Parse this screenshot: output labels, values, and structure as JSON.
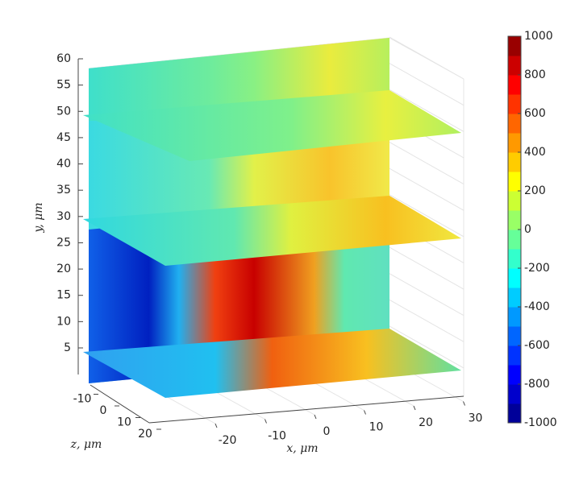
{
  "chart_data": {
    "type": "slice3d",
    "xlabel": "x, μm",
    "ylabel": "y, μm",
    "zlabel": "z, μm",
    "xticks": [
      -20,
      -10,
      0,
      10,
      20,
      30
    ],
    "yticks": [
      5,
      10,
      15,
      20,
      25,
      30,
      35,
      40,
      45,
      50,
      55,
      60
    ],
    "zticks": [
      -10,
      0,
      10,
      20
    ],
    "grid": true,
    "colorbar": {
      "clim": [
        -1000,
        1000
      ],
      "ticks": [
        -1000,
        -800,
        -600,
        -400,
        -200,
        0,
        200,
        400,
        600,
        800,
        1000
      ],
      "colormap": "jet",
      "levels": 20
    }
  }
}
